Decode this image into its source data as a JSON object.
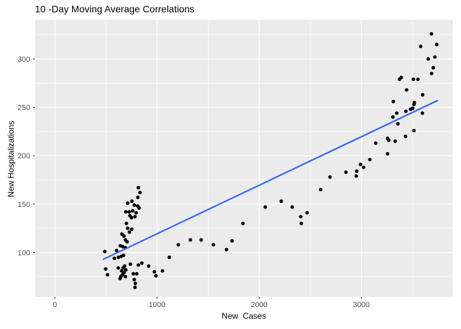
{
  "title": "10 -Day Moving Average Correlations",
  "chart_data": {
    "type": "scatter",
    "title": "10 -Day Moving Average Correlations",
    "xlabel": "New  Cases",
    "ylabel": "New Hospitalizations",
    "xlim": [
      -195,
      3895
    ],
    "ylim": [
      54.2,
      340.4
    ],
    "x_ticks": [
      0,
      1000,
      2000,
      3000
    ],
    "x_minor_ticks": [
      500,
      1500,
      2500,
      3500
    ],
    "y_ticks": [
      100,
      150,
      200,
      250,
      300
    ],
    "y_minor_ticks": [
      75,
      125,
      175,
      225,
      275,
      325
    ],
    "grid": true,
    "legend": "none",
    "panel_color": "#EBEBEB",
    "grid_color": "#FFFFFF",
    "point_color": "#000000",
    "trend_line": {
      "type": "linear-fit",
      "color": "#3366FF",
      "start": [
        475,
        93
      ],
      "end": [
        3745,
        257
      ]
    },
    "points": [
      [
        488,
        101
      ],
      [
        497,
        83
      ],
      [
        515,
        77
      ],
      [
        582,
        94
      ],
      [
        604,
        102
      ],
      [
        620,
        84
      ],
      [
        622,
        95
      ],
      [
        638,
        73
      ],
      [
        640,
        107
      ],
      [
        645,
        75
      ],
      [
        649,
        96
      ],
      [
        653,
        81
      ],
      [
        656,
        119
      ],
      [
        660,
        77
      ],
      [
        665,
        106
      ],
      [
        667,
        84
      ],
      [
        672,
        97
      ],
      [
        676,
        117
      ],
      [
        676,
        79
      ],
      [
        683,
        86
      ],
      [
        690,
        113
      ],
      [
        690,
        105
      ],
      [
        690,
        75
      ],
      [
        694,
        142
      ],
      [
        694,
        82
      ],
      [
        700,
        130
      ],
      [
        707,
        111
      ],
      [
        712,
        151
      ],
      [
        712,
        125
      ],
      [
        727,
        142
      ],
      [
        730,
        121
      ],
      [
        734,
        138
      ],
      [
        739,
        88
      ],
      [
        750,
        136
      ],
      [
        752,
        124
      ],
      [
        754,
        153
      ],
      [
        761,
        143
      ],
      [
        768,
        78
      ],
      [
        777,
        149
      ],
      [
        777,
        72
      ],
      [
        784,
        137
      ],
      [
        784,
        64
      ],
      [
        788,
        68
      ],
      [
        795,
        141
      ],
      [
        801,
        78
      ],
      [
        810,
        148
      ],
      [
        812,
        157
      ],
      [
        817,
        167
      ],
      [
        817,
        87
      ],
      [
        824,
        146
      ],
      [
        833,
        162
      ],
      [
        851,
        89
      ],
      [
        918,
        86
      ],
      [
        974,
        80
      ],
      [
        989,
        76
      ],
      [
        1053,
        81
      ],
      [
        1120,
        95
      ],
      [
        1208,
        108
      ],
      [
        1327,
        113
      ],
      [
        1432,
        113
      ],
      [
        1551,
        108
      ],
      [
        1680,
        103
      ],
      [
        1734,
        112
      ],
      [
        1841,
        130
      ],
      [
        2059,
        147
      ],
      [
        2216,
        153
      ],
      [
        2323,
        147
      ],
      [
        2406,
        137
      ],
      [
        2413,
        130
      ],
      [
        2469,
        141
      ],
      [
        2601,
        165
      ],
      [
        2693,
        178
      ],
      [
        2849,
        183
      ],
      [
        2950,
        179
      ],
      [
        2955,
        184
      ],
      [
        2991,
        191
      ],
      [
        3022,
        188
      ],
      [
        3083,
        196
      ],
      [
        3141,
        213
      ],
      [
        3257,
        202
      ],
      [
        3257,
        218
      ],
      [
        3269,
        216
      ],
      [
        3313,
        256
      ],
      [
        3309,
        240
      ],
      [
        3331,
        215
      ],
      [
        3347,
        244
      ],
      [
        3358,
        233
      ],
      [
        3373,
        279
      ],
      [
        3391,
        281
      ],
      [
        3432,
        220
      ],
      [
        3436,
        246
      ],
      [
        3443,
        268
      ],
      [
        3481,
        248
      ],
      [
        3503,
        249
      ],
      [
        3510,
        279
      ],
      [
        3515,
        226
      ],
      [
        3515,
        253
      ],
      [
        3519,
        255
      ],
      [
        3554,
        279
      ],
      [
        3581,
        313
      ],
      [
        3598,
        244
      ],
      [
        3600,
        263
      ],
      [
        3655,
        300
      ],
      [
        3687,
        326
      ],
      [
        3688,
        285
      ],
      [
        3704,
        291
      ],
      [
        3720,
        302
      ],
      [
        3738,
        315
      ]
    ]
  }
}
